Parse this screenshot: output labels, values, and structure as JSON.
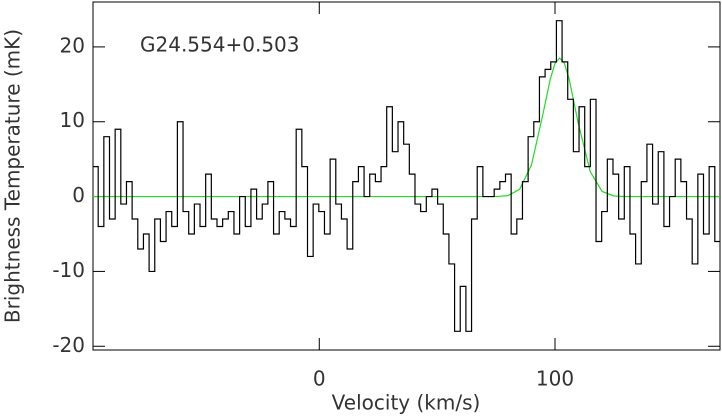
{
  "chart_data": {
    "type": "step",
    "annotation": "G24.554+0.503",
    "xlabel": "Velocity (km/s)",
    "ylabel": "Brightness Temperature (mK)",
    "xlim": [
      -96,
      170
    ],
    "ylim": [
      -20.5,
      26
    ],
    "xticks": [
      0,
      100
    ],
    "yticks": [
      -20,
      -10,
      0,
      10,
      20
    ],
    "series": [
      {
        "color": "#000000",
        "step": true,
        "x": [
          -95.0,
          -92.6,
          -90.2,
          -87.8,
          -85.4,
          -83.0,
          -80.6,
          -78.2,
          -75.8,
          -73.4,
          -71.0,
          -68.6,
          -66.2,
          -63.8,
          -61.4,
          -59.0,
          -56.6,
          -54.2,
          -51.8,
          -49.4,
          -47.0,
          -44.6,
          -42.2,
          -39.8,
          -37.4,
          -35.0,
          -32.6,
          -30.2,
          -27.8,
          -25.4,
          -23.0,
          -20.6,
          -18.2,
          -15.8,
          -13.4,
          -11.0,
          -8.6,
          -6.2,
          -3.8,
          -1.4,
          1.0,
          3.4,
          5.8,
          8.2,
          10.6,
          13.0,
          15.4,
          17.8,
          20.2,
          22.6,
          25.0,
          27.4,
          29.8,
          32.2,
          34.6,
          37.0,
          39.4,
          41.8,
          44.2,
          46.6,
          49.0,
          51.4,
          53.8,
          56.2,
          58.6,
          61.0,
          63.4,
          65.8,
          68.2,
          70.6,
          73.0,
          75.4,
          77.8,
          80.2,
          82.6,
          85.0,
          87.4,
          89.8,
          92.2,
          94.6,
          97.0,
          99.4,
          101.8,
          104.2,
          106.6,
          109.0,
          111.4,
          113.8,
          116.2,
          118.6,
          121.0,
          123.4,
          125.8,
          128.2,
          130.6,
          133.0,
          135.4,
          137.8,
          140.2,
          142.6,
          145.0,
          147.4,
          149.8,
          152.2,
          154.6,
          157.0,
          159.4,
          161.8,
          164.2,
          166.6,
          169.0
        ],
        "values": [
          4,
          -4,
          8,
          -3,
          9,
          -1,
          2,
          -3,
          -7,
          -5,
          -10,
          -3,
          -6,
          -2,
          -4,
          10,
          -2,
          -5,
          -1,
          -4,
          3,
          -3,
          -4,
          -3,
          -2,
          -5,
          0,
          -4,
          1,
          -3,
          -1,
          2,
          -5,
          -2,
          -3,
          -4,
          9,
          4,
          -8,
          -1,
          -2,
          -5,
          5,
          -1,
          -3,
          -7,
          2,
          4,
          0,
          3,
          2,
          4,
          12,
          6,
          10,
          7,
          3,
          -1,
          -2,
          0,
          1,
          -1,
          -5,
          -9,
          -18,
          -12,
          -18,
          -3,
          4,
          0,
          0,
          1,
          2,
          3,
          -5,
          -3,
          2,
          8,
          10,
          16,
          17,
          18,
          23.5,
          18,
          13,
          6,
          12,
          4,
          13,
          -6,
          -2,
          5,
          3,
          -3,
          4,
          -5,
          -9,
          2,
          7,
          -1,
          6,
          -4,
          0,
          5,
          2,
          -3,
          -9,
          3,
          -5,
          4,
          -6
        ]
      },
      {
        "color": "#22dd22",
        "step": false,
        "x": [
          -96,
          60,
          70,
          75,
          80,
          85,
          90,
          95,
          98,
          100,
          102,
          104,
          106,
          110,
          115,
          120,
          125,
          130,
          140,
          170
        ],
        "values": [
          0,
          0,
          0,
          0,
          0.13,
          0.97,
          4.2,
          11.2,
          15.7,
          17.8,
          18.5,
          17.8,
          15.7,
          9.6,
          3.3,
          0.68,
          0.08,
          0,
          0,
          0
        ]
      }
    ]
  }
}
